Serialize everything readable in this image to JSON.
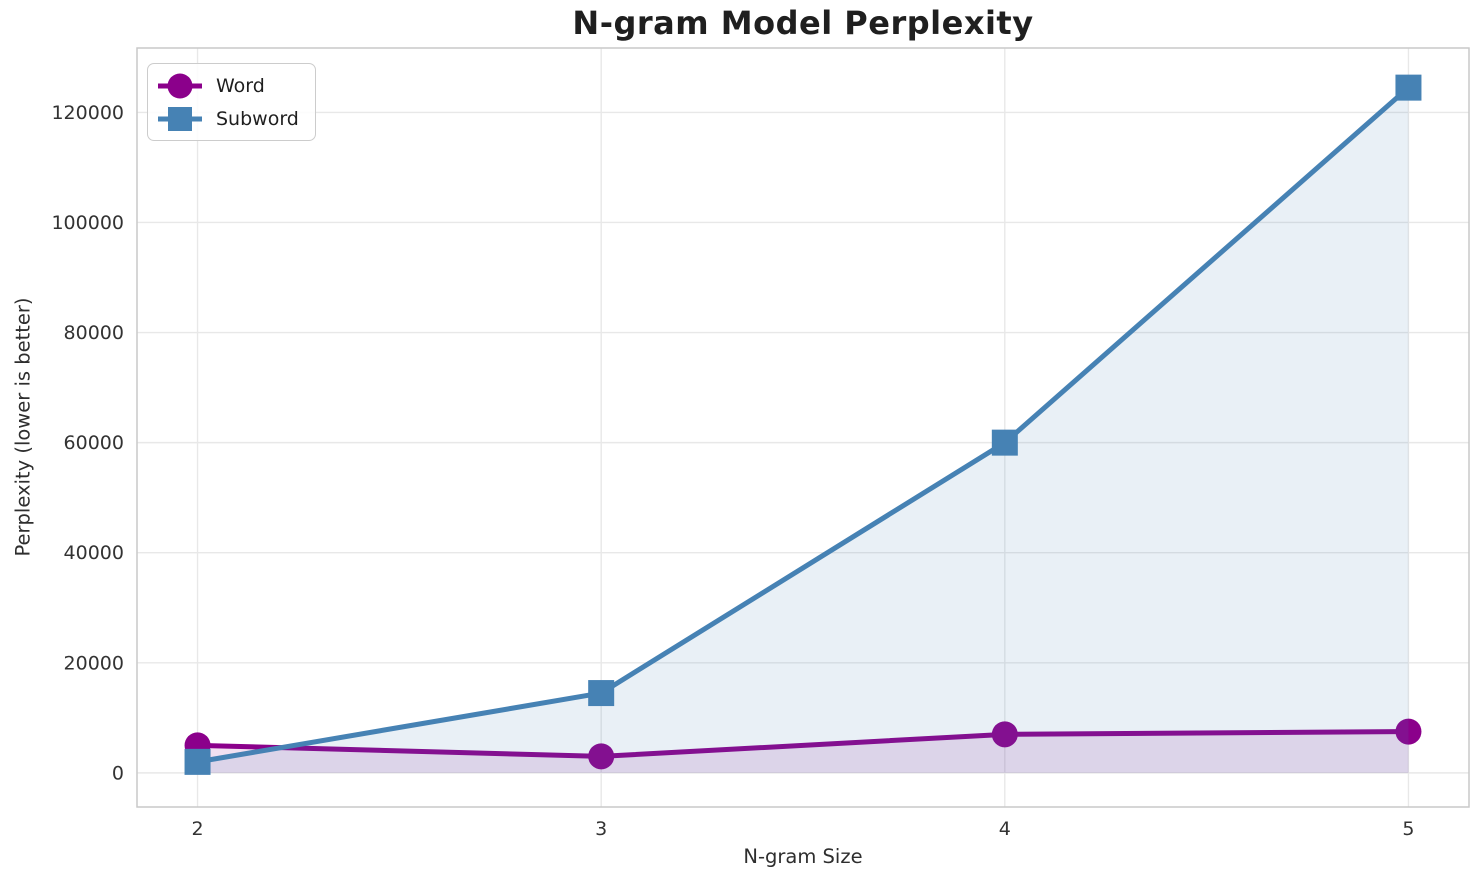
{
  "chart_data": {
    "type": "line",
    "title": "N-gram Model Perplexity",
    "xlabel": "N-gram Size",
    "ylabel": "Perplexity (lower is better)",
    "x": [
      2,
      3,
      4,
      5
    ],
    "x_tick_labels": [
      "2",
      "3",
      "4",
      "5"
    ],
    "y_ticks": [
      0,
      20000,
      40000,
      60000,
      80000,
      100000,
      120000
    ],
    "y_tick_labels": [
      "0",
      "20000",
      "40000",
      "60000",
      "80000",
      "100000",
      "120000"
    ],
    "xlim": [
      1.85,
      5.15
    ],
    "ylim": [
      -6200,
      131700
    ],
    "grid": true,
    "legend_position": "upper left",
    "area_fill_to_zero": true,
    "fill_opacity": 0.12,
    "series": [
      {
        "name": "Word",
        "marker": "circle",
        "color": "#8B008B",
        "values": [
          5000,
          3000,
          7000,
          7500
        ]
      },
      {
        "name": "Subword",
        "marker": "square",
        "color": "#4682B4",
        "values": [
          2000,
          14500,
          60000,
          124500
        ]
      }
    ],
    "style": {
      "grid_color": "#e8e8e8",
      "spine_color": "#c9c9c9",
      "line_width": 5,
      "marker_size": 26,
      "background": "#ffffff"
    }
  }
}
